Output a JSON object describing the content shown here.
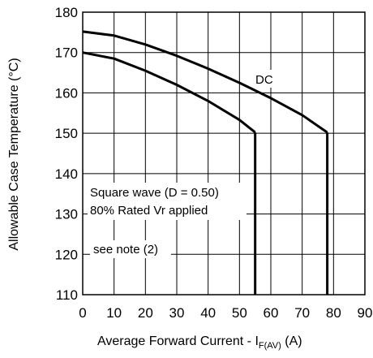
{
  "chart_data": {
    "type": "line",
    "xlabel": "Average Forward Current - I",
    "xlabel_sub": "F(AV)",
    "xlabel_unit": " (A)",
    "ylabel": "Allowable Case Temperature  (°C)",
    "xlim": [
      0,
      90
    ],
    "ylim": [
      110,
      180
    ],
    "xticks": [
      0,
      10,
      20,
      30,
      40,
      50,
      60,
      70,
      80,
      90
    ],
    "yticks": [
      110,
      120,
      130,
      140,
      150,
      160,
      170,
      180
    ],
    "xtick_labels": [
      "0",
      "10",
      "20",
      "30",
      "40",
      "50",
      "60",
      "70",
      "80",
      "90"
    ],
    "ytick_labels": [
      "110",
      "120",
      "130",
      "140",
      "150",
      "160",
      "170",
      "180"
    ],
    "grid": true,
    "series": [
      {
        "name": "DC",
        "points": [
          [
            0,
            175.2
          ],
          [
            10,
            174.2
          ],
          [
            20,
            172.0
          ],
          [
            30,
            169.2
          ],
          [
            40,
            166.0
          ],
          [
            50,
            162.5
          ],
          [
            60,
            158.7
          ],
          [
            70,
            154.5
          ],
          [
            78,
            150.2
          ],
          [
            78,
            110
          ]
        ]
      },
      {
        "points": [
          [
            0,
            170.0
          ],
          [
            10,
            168.5
          ],
          [
            20,
            165.5
          ],
          [
            30,
            162.0
          ],
          [
            40,
            158.0
          ],
          [
            50,
            153.3
          ],
          [
            55,
            150.2
          ],
          [
            55,
            110
          ]
        ]
      }
    ],
    "annotations": {
      "dc_label": "DC",
      "square_wave": "Square wave (D = 0.50)",
      "rated_vr": "80% Rated Vr  applied",
      "note": "see note (2)"
    }
  }
}
